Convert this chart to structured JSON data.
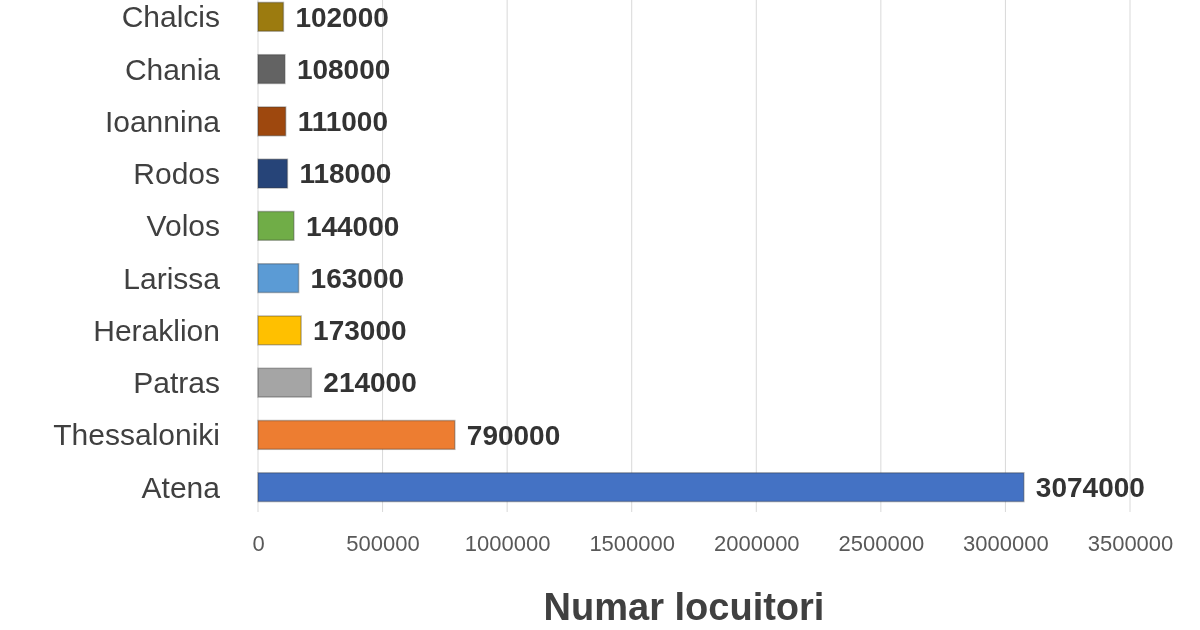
{
  "chart_data": {
    "type": "bar",
    "orientation": "horizontal",
    "categories": [
      "Chalcis",
      "Chania",
      "Ioannina",
      "Rodos",
      "Volos",
      "Larissa",
      "Heraklion",
      "Patras",
      "Thessaloniki",
      "Atena"
    ],
    "values": [
      102000,
      108000,
      111000,
      118000,
      144000,
      163000,
      173000,
      214000,
      790000,
      3074000
    ],
    "colors": [
      "#9c7b0f",
      "#636363",
      "#9e480e",
      "#264478",
      "#70ad47",
      "#5b9bd5",
      "#ffc000",
      "#a5a5a5",
      "#ed7d31",
      "#4472c4"
    ],
    "xlim": [
      0,
      3500000
    ],
    "xticks": [
      0,
      500000,
      1000000,
      1500000,
      2000000,
      2500000,
      3000000,
      3500000
    ],
    "xlabel": "Numar locuitori",
    "grid": "x",
    "data_labels": true
  }
}
